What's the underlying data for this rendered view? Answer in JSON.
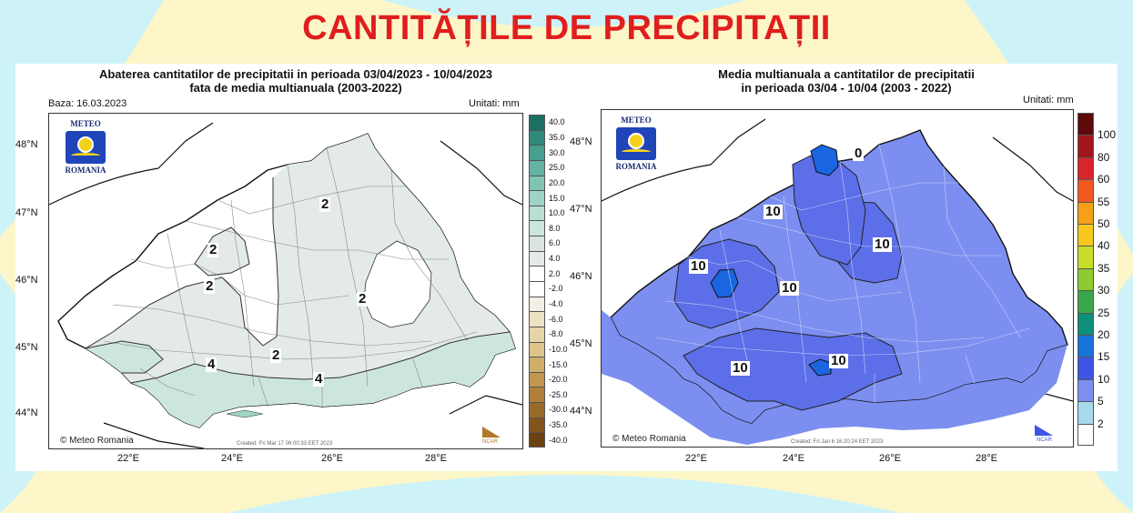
{
  "page": {
    "title": "CANTITĂȚILE DE PRECIPITAȚII",
    "colors": {
      "title": "#e01e1e",
      "background_yellow": "#fdf6c8",
      "background_cyan": "#cdf3f8"
    }
  },
  "left_map": {
    "title_line1": "Abaterea cantitatilor de precipitatii in perioada 03/04/2023 - 10/04/2023",
    "title_line2": "fata de media multianuala (2003-2022)",
    "base_label": "Baza: 16.03.2023",
    "units": "Unitati: mm",
    "logo": {
      "top": "METEO",
      "bottom": "ROMANIA",
      "icon": "meteo-romania-logo-icon"
    },
    "copyright": "© Meteo Romania",
    "created": "Created: Fri Mar 17 06:00:33 EET 2023",
    "ncar": "NCAR",
    "lat_labels": [
      "48°N",
      "47°N",
      "46°N",
      "45°N",
      "44°N"
    ],
    "lon_labels": [
      "22°E",
      "24°E",
      "26°E",
      "28°E"
    ],
    "contour_labels": [
      "2",
      "2",
      "2",
      "2",
      "2",
      "4",
      "4"
    ],
    "colorbar": {
      "labels": [
        "40.0",
        "35.0",
        "30.0",
        "25.0",
        "20.0",
        "15.0",
        "10.0",
        "8.0",
        "6.0",
        "4.0",
        "2.0",
        "-2.0",
        "-4.0",
        "-6.0",
        "-8.0",
        "-10.0",
        "-15.0",
        "-20.0",
        "-25.0",
        "-30.0",
        "-35.0",
        "-40.0"
      ],
      "colors": [
        "#1d6f63",
        "#2f8a7b",
        "#47a08f",
        "#63b4a2",
        "#7fc5b4",
        "#9ed4c5",
        "#b9e0d4",
        "#cce6dd",
        "#d8e5e0",
        "#e3eae8",
        "#ffffff",
        "#ffffff",
        "#f3efe2",
        "#ece2c4",
        "#e6d5a7",
        "#dcc48a",
        "#cfae6a",
        "#c1974e",
        "#b0803a",
        "#9a6a28",
        "#82551a",
        "#6b420f"
      ]
    }
  },
  "right_map": {
    "title_line1": "Media multianuala a cantitatilor de precipitatii",
    "title_line2": "in perioada 03/04 - 10/04 (2003 - 2022)",
    "units": "Unitati: mm",
    "logo": {
      "top": "METEO",
      "bottom": "ROMANIA",
      "icon": "meteo-romania-logo-icon"
    },
    "copyright": "© Meteo Romania",
    "created": "Created: Fri Jan 6 16:20:24 EET 2023",
    "ncar": "NCAR",
    "lat_labels": [
      "48°N",
      "47°N",
      "46°N",
      "45°N",
      "44°N"
    ],
    "lon_labels": [
      "22°E",
      "24°E",
      "26°E",
      "28°E"
    ],
    "contour_labels": [
      "0",
      "10",
      "10",
      "10",
      "10",
      "10",
      "10"
    ],
    "colorbar": {
      "labels": [
        "100",
        "80",
        "60",
        "55",
        "50",
        "40",
        "35",
        "30",
        "25",
        "20",
        "15",
        "10",
        "5",
        "2"
      ],
      "colors": [
        "#5c0a0a",
        "#a0161b",
        "#d8242a",
        "#f25822",
        "#f5a017",
        "#f7c81c",
        "#c8dd2a",
        "#8ccc2f",
        "#3aa84a",
        "#0e8f78",
        "#1a72dc",
        "#3d55e6",
        "#7d8ff0",
        "#a9d9ec",
        "#ffffff"
      ]
    },
    "colors": {
      "base_fill": "#7c8ff0",
      "mid_fill": "#5c6ee8",
      "high_fill": "#3f57e6",
      "peak_fill": "#1a66e0"
    }
  }
}
